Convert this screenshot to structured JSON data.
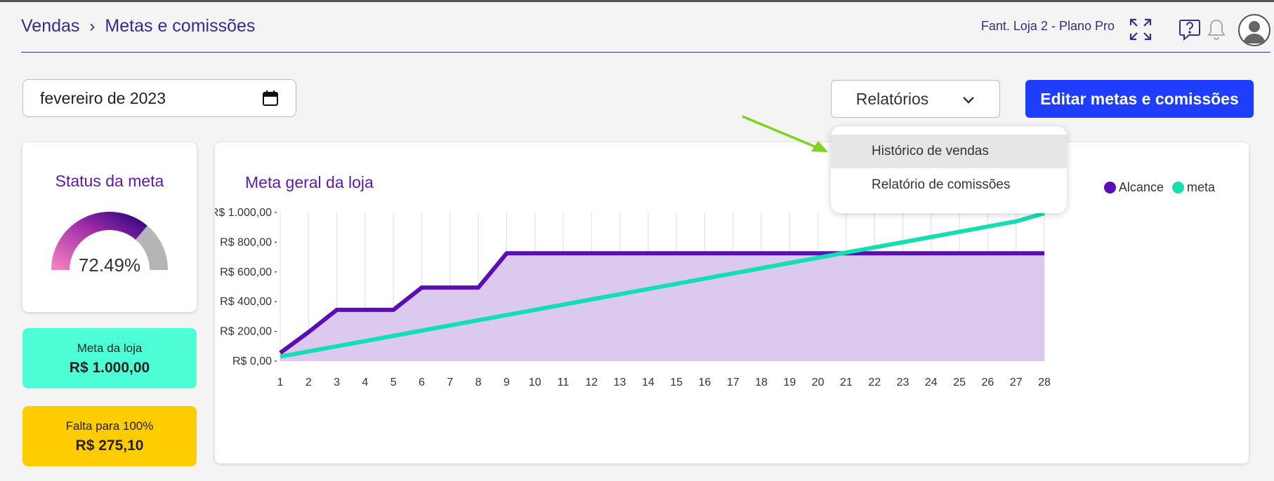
{
  "header": {
    "breadcrumb": [
      "Vendas",
      "Metas e comissões"
    ],
    "store_info": "Fant. Loja 2 - Plano Pro",
    "icons": [
      "fullscreen-icon",
      "help-icon",
      "bell-icon",
      "user-avatar-icon"
    ]
  },
  "toolbar": {
    "date_value": "fevereiro de 2023",
    "reports_label": "Relatórios",
    "edit_button_label": "Editar metas e comissões"
  },
  "reports_menu": {
    "items": [
      "Histórico de vendas",
      "Relatório de comissões"
    ],
    "hovered_index": 0
  },
  "status": {
    "title": "Status da meta",
    "percent_label": "72.49%",
    "fraction": 0.7249
  },
  "meta_loja": {
    "label": "Meta da loja",
    "value": "R$ 1.000,00"
  },
  "falta": {
    "label": "Falta para 100%",
    "value": "R$ 275,10"
  },
  "colors": {
    "primary": "#5b1aa8",
    "alcance": "#5a0eb3",
    "alcance_fill": "#dcc9f0",
    "meta": "#14dfb2",
    "button": "#1f3dfc",
    "meta_card": "#4dffd6",
    "falta_card": "#ffcc00"
  },
  "chart": {
    "title": "Meta geral da loja",
    "legend": [
      "Alcance",
      "meta"
    ]
  },
  "chart_data": {
    "type": "line",
    "title": "Meta geral da loja",
    "x": [
      1,
      2,
      3,
      4,
      5,
      6,
      7,
      8,
      9,
      10,
      11,
      12,
      13,
      14,
      15,
      16,
      17,
      18,
      19,
      20,
      21,
      22,
      23,
      24,
      25,
      26,
      27,
      28
    ],
    "series": [
      {
        "name": "Alcance",
        "values": [
          55,
          195,
          345,
          345,
          345,
          495,
          495,
          495,
          725,
          725,
          725,
          725,
          725,
          725,
          725,
          725,
          725,
          725,
          725,
          725,
          725,
          725,
          725,
          725,
          725,
          725,
          725,
          725
        ]
      },
      {
        "name": "meta",
        "values": [
          30,
          65,
          100,
          135,
          170,
          205,
          240,
          275,
          310,
          345,
          380,
          415,
          450,
          485,
          520,
          555,
          590,
          625,
          660,
          695,
          730,
          765,
          800,
          835,
          870,
          905,
          940,
          995
        ]
      }
    ],
    "y_ticks": [
      "R$ 0,00",
      "R$ 200,00",
      "R$ 400,00",
      "R$ 600,00",
      "R$ 800,00",
      "R$ 1.000,00"
    ],
    "ylim": [
      0,
      1000
    ],
    "grid": "vertical",
    "legend": "top-right"
  }
}
